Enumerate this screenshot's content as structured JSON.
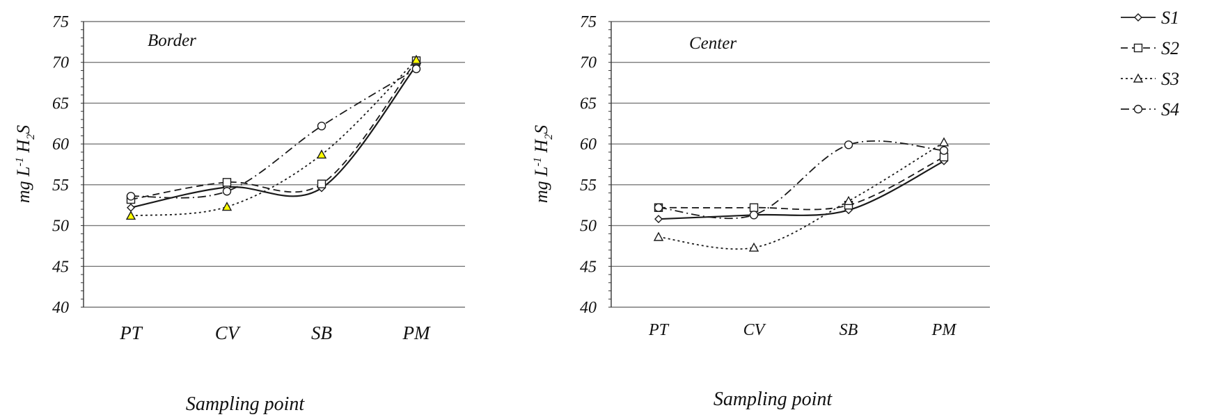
{
  "chart_data": [
    {
      "type": "line",
      "panel_label": "Border",
      "categories": [
        "PT",
        "CV",
        "SB",
        "PM"
      ],
      "xlabel": "Sampling point",
      "ylabel_parts": {
        "base": "mg L",
        "sup": "-1",
        "mid": " H",
        "sub": "2",
        "end": "S"
      },
      "ylim": [
        40,
        75
      ],
      "yticks": [
        40,
        45,
        50,
        55,
        60,
        65,
        70,
        75
      ],
      "grid": true,
      "series": [
        {
          "name": "S1",
          "values": [
            52.2,
            54.7,
            54.6,
            69.6
          ]
        },
        {
          "name": "S2",
          "values": [
            53.2,
            55.3,
            55.1,
            70.2
          ]
        },
        {
          "name": "S3",
          "values": [
            51.2,
            52.3,
            58.7,
            70.3
          ]
        },
        {
          "name": "S4",
          "values": [
            53.6,
            54.2,
            62.2,
            69.2
          ]
        }
      ]
    },
    {
      "type": "line",
      "panel_label": "Center",
      "categories": [
        "PT",
        "CV",
        "SB",
        "PM"
      ],
      "xlabel": "Sampling point",
      "ylabel_parts": {
        "base": "mg L",
        "sup": "-1",
        "mid": " H",
        "sub": "2",
        "end": "S"
      },
      "ylim": [
        40,
        75
      ],
      "yticks": [
        40,
        45,
        50,
        55,
        60,
        65,
        70,
        75
      ],
      "grid": true,
      "series": [
        {
          "name": "S1",
          "values": [
            50.8,
            51.3,
            51.9,
            57.9
          ]
        },
        {
          "name": "S2",
          "values": [
            52.2,
            52.2,
            52.5,
            58.4
          ]
        },
        {
          "name": "S3",
          "values": [
            48.6,
            47.3,
            53.0,
            60.2
          ]
        },
        {
          "name": "S4",
          "values": [
            52.2,
            51.3,
            59.9,
            59.2
          ]
        }
      ]
    }
  ],
  "legend": {
    "placement": "top-right",
    "entries": [
      {
        "name": "S1",
        "marker": "diamond",
        "dash": "solid"
      },
      {
        "name": "S2",
        "marker": "square",
        "dash": "dashed"
      },
      {
        "name": "S3",
        "marker": "triangle",
        "dash": "dotted"
      },
      {
        "name": "S4",
        "marker": "circle",
        "dash": "dash-dot"
      }
    ]
  },
  "colors": {
    "line": "#1a1a1a",
    "grid": "#7a7a7a",
    "marker_fill": "#ffffff",
    "highlight_fill": "#ffff00"
  }
}
